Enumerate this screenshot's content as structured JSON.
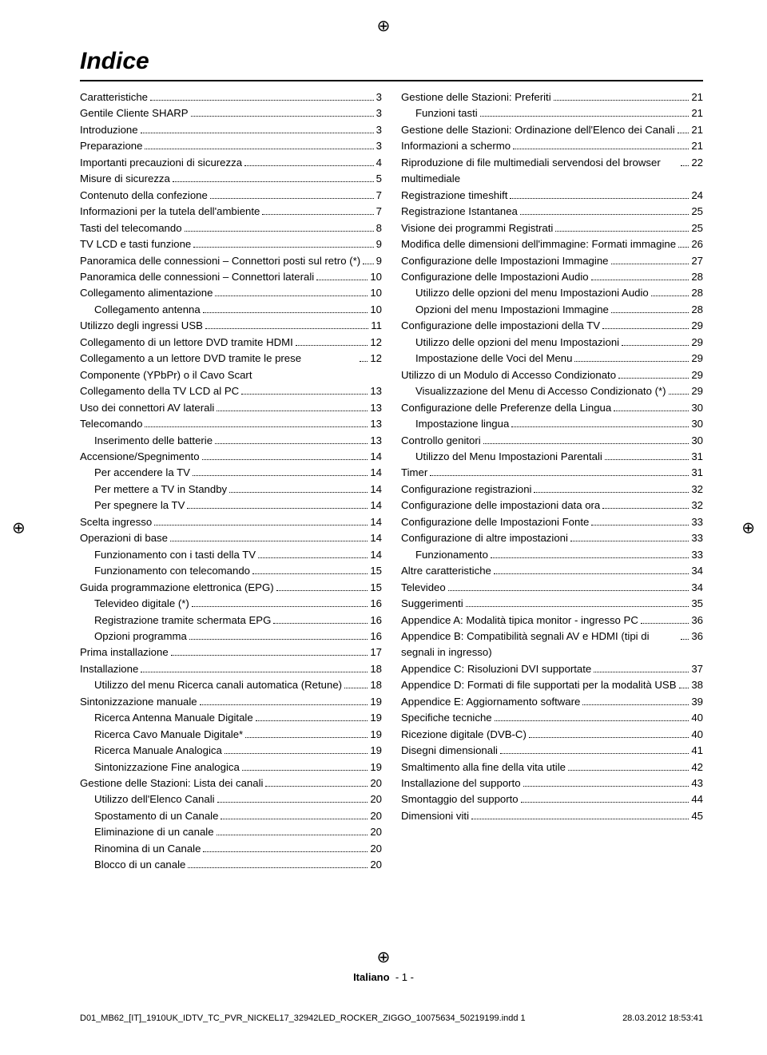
{
  "title": "Indice",
  "footer": {
    "lang": "Italiano",
    "page": "- 1 -"
  },
  "imprint": {
    "left": "D01_MB62_[IT]_1910UK_IDTV_TC_PVR_NICKEL17_32942LED_ROCKER_ZIGGO_10075634_50219199.indd   1",
    "right": "28.03.2012   18:53:41"
  },
  "left_col": [
    {
      "label": "Caratteristiche",
      "page": "3",
      "indent": 0
    },
    {
      "label": "Gentile Cliente SHARP",
      "page": "3",
      "indent": 0
    },
    {
      "label": "Introduzione",
      "page": "3",
      "indent": 0
    },
    {
      "label": "Preparazione",
      "page": "3",
      "indent": 0
    },
    {
      "label": "Importanti precauzioni di sicurezza",
      "page": "4",
      "indent": 0
    },
    {
      "label": "Misure di sicurezza",
      "page": "5",
      "indent": 0
    },
    {
      "label": "Contenuto della confezione",
      "page": "7",
      "indent": 0
    },
    {
      "label": "Informazioni per la tutela dell'ambiente",
      "page": "7",
      "indent": 0
    },
    {
      "label": "Tasti del telecomando",
      "page": "8",
      "indent": 0
    },
    {
      "label": "TV LCD e tasti funzione",
      "page": "9",
      "indent": 0
    },
    {
      "label": "Panoramica delle connessioni – Connettori posti sul retro (*)",
      "page": "9",
      "indent": 0
    },
    {
      "label": "Panoramica delle connessioni – Connettori laterali",
      "page": "10",
      "indent": 0
    },
    {
      "label": "Collegamento alimentazione",
      "page": "10",
      "indent": 0
    },
    {
      "label": "Collegamento antenna",
      "page": "10",
      "indent": 1
    },
    {
      "label": "Utilizzo degli ingressi USB",
      "page": "11",
      "indent": 0
    },
    {
      "label": "Collegamento di un lettore DVD tramite HDMI",
      "page": "12",
      "indent": 0
    },
    {
      "label": "Collegamento a un lettore DVD tramite le prese Componente (YPbPr) o il Cavo Scart",
      "page": "12",
      "indent": 0
    },
    {
      "label": "Collegamento della TV LCD al PC",
      "page": "13",
      "indent": 0
    },
    {
      "label": "Uso dei connettori AV laterali",
      "page": "13",
      "indent": 0
    },
    {
      "label": "Telecomando",
      "page": "13",
      "indent": 0
    },
    {
      "label": "Inserimento delle batterie",
      "page": "13",
      "indent": 1
    },
    {
      "label": "Accensione/Spegnimento",
      "page": "14",
      "indent": 0
    },
    {
      "label": "Per accendere la TV",
      "page": "14",
      "indent": 1
    },
    {
      "label": "Per mettere a TV in Standby",
      "page": "14",
      "indent": 1
    },
    {
      "label": "Per spegnere la TV",
      "page": "14",
      "indent": 1
    },
    {
      "label": "Scelta ingresso",
      "page": "14",
      "indent": 0
    },
    {
      "label": "Operazioni di base",
      "page": "14",
      "indent": 0
    },
    {
      "label": "Funzionamento con i tasti della TV",
      "page": "14",
      "indent": 1
    },
    {
      "label": "Funzionamento con telecomando",
      "page": "15",
      "indent": 1
    },
    {
      "label": "Guida programmazione elettronica (EPG)",
      "page": "15",
      "indent": 0
    },
    {
      "label": "Televideo digitale (*)",
      "page": "16",
      "indent": 1
    },
    {
      "label": "Registrazione tramite schermata EPG",
      "page": "16",
      "indent": 1
    },
    {
      "label": "Opzioni programma",
      "page": "16",
      "indent": 1
    },
    {
      "label": "Prima installazione",
      "page": "17",
      "indent": 0
    },
    {
      "label": "Installazione",
      "page": "18",
      "indent": 0
    },
    {
      "label": "Utilizzo del menu Ricerca canali automatica (Retune)",
      "page": "18",
      "indent": 1
    },
    {
      "label": "Sintonizzazione manuale",
      "page": "19",
      "indent": 0
    },
    {
      "label": "Ricerca Antenna Manuale Digitale",
      "page": "19",
      "indent": 1
    },
    {
      "label": "Ricerca Cavo Manuale Digitale*",
      "page": "19",
      "indent": 1
    },
    {
      "label": "Ricerca Manuale Analogica",
      "page": "19",
      "indent": 1
    },
    {
      "label": "Sintonizzazione Fine analogica",
      "page": "19",
      "indent": 1
    },
    {
      "label": "Gestione delle Stazioni: Lista dei canali",
      "page": "20",
      "indent": 0
    },
    {
      "label": "Utilizzo dell'Elenco Canali",
      "page": "20",
      "indent": 1
    },
    {
      "label": "Spostamento di un Canale",
      "page": "20",
      "indent": 1
    },
    {
      "label": "Eliminazione di un canale",
      "page": "20",
      "indent": 1
    },
    {
      "label": "Rinomina di un Canale",
      "page": "20",
      "indent": 1
    },
    {
      "label": "Blocco di un canale",
      "page": "20",
      "indent": 1
    }
  ],
  "right_col": [
    {
      "label": "Gestione delle Stazioni: Preferiti",
      "page": "21",
      "indent": 0
    },
    {
      "label": "Funzioni tasti",
      "page": "21",
      "indent": 1
    },
    {
      "label": "Gestione delle Stazioni: Ordinazione dell'Elenco dei Canali",
      "page": "21",
      "indent": 0
    },
    {
      "label": "Informazioni a schermo",
      "page": "21",
      "indent": 0
    },
    {
      "label": "Riproduzione di file multimediali servendosi del browser multimediale",
      "page": "22",
      "indent": 0
    },
    {
      "label": "Registrazione timeshift",
      "page": "24",
      "indent": 0
    },
    {
      "label": "Registrazione Istantanea",
      "page": "25",
      "indent": 0
    },
    {
      "label": "Visione dei programmi Registrati",
      "page": "25",
      "indent": 0
    },
    {
      "label": "Modifica delle dimensioni dell'immagine: Formati immagine",
      "page": "26",
      "indent": 0
    },
    {
      "label": "Configurazione delle Impostazioni Immagine",
      "page": "27",
      "indent": 0
    },
    {
      "label": "Configurazione delle Impostazioni Audio",
      "page": "28",
      "indent": 0
    },
    {
      "label": "Utilizzo delle opzioni del menu Impostazioni Audio",
      "page": "28",
      "indent": 1
    },
    {
      "label": "Opzioni del menu Impostazioni Immagine",
      "page": "28",
      "indent": 1
    },
    {
      "label": "Configurazione delle impostazioni della TV",
      "page": "29",
      "indent": 0
    },
    {
      "label": "Utilizzo delle opzioni del menu Impostazioni",
      "page": "29",
      "indent": 1
    },
    {
      "label": "Impostazione delle Voci del Menu",
      "page": "29",
      "indent": 1
    },
    {
      "label": "Utilizzo di un Modulo di Accesso Condizionato",
      "page": "29",
      "indent": 0
    },
    {
      "label": "Visualizzazione del Menu di Accesso Condizionato (*)",
      "page": "29",
      "indent": 1
    },
    {
      "label": "Configurazione delle Preferenze della Lingua",
      "page": "30",
      "indent": 0
    },
    {
      "label": "Impostazione lingua",
      "page": "30",
      "indent": 1
    },
    {
      "label": "Controllo genitori",
      "page": "30",
      "indent": 0
    },
    {
      "label": "Utilizzo del Menu Impostazioni Parentali",
      "page": "31",
      "indent": 1
    },
    {
      "label": "Timer",
      "page": "31",
      "indent": 0
    },
    {
      "label": "Configurazione registrazioni",
      "page": "32",
      "indent": 0
    },
    {
      "label": "Configurazione delle impostazioni data ora",
      "page": "32",
      "indent": 0
    },
    {
      "label": "Configurazione delle Impostazioni Fonte",
      "page": "33",
      "indent": 0
    },
    {
      "label": "Configurazione di altre impostazioni",
      "page": "33",
      "indent": 0
    },
    {
      "label": "Funzionamento",
      "page": "33",
      "indent": 1
    },
    {
      "label": "Altre caratteristiche",
      "page": "34",
      "indent": 0
    },
    {
      "label": "Televideo",
      "page": "34",
      "indent": 0
    },
    {
      "label": "Suggerimenti",
      "page": "35",
      "indent": 0
    },
    {
      "label": "Appendice A: Modalità tipica monitor - ingresso PC",
      "page": "36",
      "indent": 0
    },
    {
      "label": "Appendice B: Compatibilità segnali AV e HDMI (tipi di segnali in ingresso)",
      "page": "36",
      "indent": 0
    },
    {
      "label": "Appendice C: Risoluzioni DVI supportate",
      "page": "37",
      "indent": 0
    },
    {
      "label": "Appendice D: Formati di file supportati per la modalità USB",
      "page": "38",
      "indent": 0
    },
    {
      "label": "Appendice E: Aggiornamento software",
      "page": "39",
      "indent": 0
    },
    {
      "label": "Specifiche tecniche",
      "page": "40",
      "indent": 0
    },
    {
      "label": "Ricezione digitale (DVB-C)",
      "page": "40",
      "indent": 0
    },
    {
      "label": "Disegni dimensionali",
      "page": "41",
      "indent": 0
    },
    {
      "label": "Smaltimento alla fine della vita utile",
      "page": "42",
      "indent": 0
    },
    {
      "label": "Installazione del supporto",
      "page": "43",
      "indent": 0
    },
    {
      "label": "Smontaggio del supporto",
      "page": "44",
      "indent": 0
    },
    {
      "label": "Dimensioni viti",
      "page": "45",
      "indent": 0
    }
  ]
}
